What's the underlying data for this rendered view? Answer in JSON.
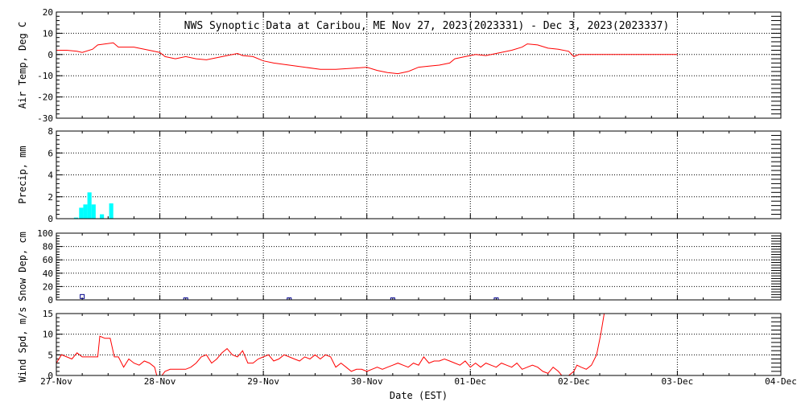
{
  "title": "NWS Synoptic Data at Caribou, ME   Nov 27, 2023(2023331) - Dec  3, 2023(2023337)",
  "xlabel": "Date (EST)",
  "x_ticks": [
    "27-Nov",
    "28-Nov",
    "29-Nov",
    "30-Nov",
    "01-Dec",
    "02-Dec",
    "03-Dec",
    "04-Dec"
  ],
  "colors": {
    "temp": "#ff0000",
    "precip": "#00ffff",
    "snow": "#00008b",
    "wind": "#ff0000",
    "frame": "#000000"
  },
  "chart_data": [
    {
      "type": "line",
      "ylabel": "Air Temp, Deg C",
      "ylim": [
        -30,
        20
      ],
      "yticks": [
        -30,
        -20,
        -10,
        0,
        10,
        20
      ],
      "grid": true,
      "x_unit": "days since 27-Nov 00:00 EST",
      "series": [
        {
          "points": [
            [
              0,
              2
            ],
            [
              0.1,
              2
            ],
            [
              0.2,
              1.5
            ],
            [
              0.25,
              1
            ],
            [
              0.35,
              2.5
            ],
            [
              0.4,
              4.5
            ],
            [
              0.55,
              5.5
            ],
            [
              0.6,
              3.5
            ],
            [
              0.75,
              3.5
            ],
            [
              0.85,
              2.5
            ],
            [
              1.0,
              1
            ],
            [
              1.05,
              -1
            ],
            [
              1.15,
              -2
            ],
            [
              1.25,
              -1
            ],
            [
              1.35,
              -2
            ],
            [
              1.45,
              -2.5
            ],
            [
              1.55,
              -1.5
            ],
            [
              1.65,
              -0.5
            ],
            [
              1.75,
              0.5
            ],
            [
              1.8,
              -0.5
            ],
            [
              1.9,
              -1
            ],
            [
              2.0,
              -3
            ],
            [
              2.1,
              -4
            ],
            [
              2.25,
              -5
            ],
            [
              2.4,
              -6
            ],
            [
              2.55,
              -7
            ],
            [
              2.7,
              -7
            ],
            [
              2.85,
              -6.5
            ],
            [
              3.0,
              -6
            ],
            [
              3.1,
              -7.5
            ],
            [
              3.2,
              -8.5
            ],
            [
              3.3,
              -9
            ],
            [
              3.4,
              -8
            ],
            [
              3.5,
              -6
            ],
            [
              3.6,
              -5.5
            ],
            [
              3.7,
              -5
            ],
            [
              3.8,
              -4
            ],
            [
              3.85,
              -2
            ],
            [
              3.95,
              -1
            ],
            [
              4.0,
              -0.5
            ],
            [
              4.05,
              0
            ],
            [
              4.15,
              -0.5
            ],
            [
              4.25,
              0.5
            ],
            [
              4.4,
              2
            ],
            [
              4.5,
              3.5
            ],
            [
              4.55,
              5
            ],
            [
              4.65,
              4.5
            ],
            [
              4.75,
              3
            ],
            [
              4.85,
              2.5
            ],
            [
              4.95,
              1.5
            ],
            [
              5.0,
              -1
            ],
            [
              5.05,
              0
            ],
            [
              5.1,
              0
            ],
            [
              5.5,
              0
            ],
            [
              6.0,
              0
            ]
          ]
        }
      ]
    },
    {
      "type": "bar",
      "ylabel": "Precip, mm",
      "ylim": [
        0,
        8
      ],
      "yticks": [
        0,
        2,
        4,
        6,
        8
      ],
      "grid": true,
      "x_unit": "days since 27-Nov 00:00 EST",
      "bar_width_days": 0.04,
      "bars": [
        [
          0.19,
          0.1
        ],
        [
          0.24,
          1.0
        ],
        [
          0.28,
          1.3
        ],
        [
          0.32,
          2.4
        ],
        [
          0.36,
          1.3
        ],
        [
          0.44,
          0.4
        ],
        [
          0.53,
          1.4
        ]
      ]
    },
    {
      "type": "scatter",
      "ylabel": "Snow Dep, cm",
      "ylim": [
        0,
        100
      ],
      "yticks": [
        0,
        20,
        40,
        60,
        80,
        100
      ],
      "grid": true,
      "x_unit": "days since 27-Nov 00:00 EST",
      "points": [
        [
          0.25,
          5
        ],
        [
          1.25,
          0
        ],
        [
          2.25,
          0
        ],
        [
          3.25,
          0
        ],
        [
          4.25,
          0
        ]
      ]
    },
    {
      "type": "line",
      "ylabel": "Wind Spd, m/s",
      "ylim": [
        0,
        15
      ],
      "yticks": [
        0,
        5,
        10,
        15
      ],
      "grid": true,
      "x_unit": "days since 27-Nov 00:00 EST",
      "series": [
        {
          "points": [
            [
              0,
              3
            ],
            [
              0.05,
              5
            ],
            [
              0.1,
              4.5
            ],
            [
              0.15,
              4
            ],
            [
              0.2,
              5.5
            ],
            [
              0.25,
              4.5
            ],
            [
              0.3,
              4.5
            ],
            [
              0.35,
              4.5
            ],
            [
              0.4,
              4.5
            ],
            [
              0.42,
              9.5
            ],
            [
              0.47,
              9
            ],
            [
              0.52,
              9
            ],
            [
              0.56,
              4.5
            ],
            [
              0.6,
              4.5
            ],
            [
              0.65,
              2
            ],
            [
              0.7,
              4
            ],
            [
              0.75,
              3
            ],
            [
              0.8,
              2.5
            ],
            [
              0.85,
              3.5
            ],
            [
              0.9,
              3
            ],
            [
              0.95,
              2
            ],
            [
              0.98,
              -1
            ],
            [
              1.02,
              0
            ],
            [
              1.05,
              1
            ],
            [
              1.1,
              1.5
            ],
            [
              1.15,
              1.5
            ],
            [
              1.2,
              1.5
            ],
            [
              1.25,
              1.5
            ],
            [
              1.3,
              2
            ],
            [
              1.35,
              3
            ],
            [
              1.4,
              4.5
            ],
            [
              1.45,
              5
            ],
            [
              1.5,
              3
            ],
            [
              1.55,
              4
            ],
            [
              1.6,
              5.5
            ],
            [
              1.65,
              6.5
            ],
            [
              1.7,
              5
            ],
            [
              1.75,
              4.5
            ],
            [
              1.8,
              6
            ],
            [
              1.85,
              3
            ],
            [
              1.9,
              3
            ],
            [
              1.95,
              4
            ],
            [
              2.0,
              4.5
            ],
            [
              2.05,
              5
            ],
            [
              2.1,
              3.5
            ],
            [
              2.15,
              4
            ],
            [
              2.2,
              5
            ],
            [
              2.25,
              4.5
            ],
            [
              2.3,
              4
            ],
            [
              2.35,
              3.5
            ],
            [
              2.4,
              4.5
            ],
            [
              2.45,
              4
            ],
            [
              2.5,
              5
            ],
            [
              2.55,
              4
            ],
            [
              2.6,
              5
            ],
            [
              2.65,
              4.5
            ],
            [
              2.7,
              2
            ],
            [
              2.75,
              3
            ],
            [
              2.8,
              2
            ],
            [
              2.85,
              1
            ],
            [
              2.9,
              1.5
            ],
            [
              2.95,
              1.5
            ],
            [
              3.0,
              1
            ],
            [
              3.05,
              1.5
            ],
            [
              3.1,
              2
            ],
            [
              3.15,
              1.5
            ],
            [
              3.2,
              2
            ],
            [
              3.25,
              2.5
            ],
            [
              3.3,
              3
            ],
            [
              3.35,
              2.5
            ],
            [
              3.4,
              2
            ],
            [
              3.45,
              3
            ],
            [
              3.5,
              2.5
            ],
            [
              3.55,
              4.5
            ],
            [
              3.6,
              3
            ],
            [
              3.65,
              3.5
            ],
            [
              3.7,
              3.5
            ],
            [
              3.75,
              4
            ],
            [
              3.8,
              3.5
            ],
            [
              3.85,
              3
            ],
            [
              3.9,
              2.5
            ],
            [
              3.95,
              3.5
            ],
            [
              4.0,
              2
            ],
            [
              4.05,
              3
            ],
            [
              4.1,
              2
            ],
            [
              4.15,
              3
            ],
            [
              4.2,
              2.5
            ],
            [
              4.25,
              2
            ],
            [
              4.3,
              3
            ],
            [
              4.35,
              2.5
            ],
            [
              4.4,
              2
            ],
            [
              4.45,
              3
            ],
            [
              4.5,
              1.5
            ],
            [
              4.55,
              2
            ],
            [
              4.6,
              2.5
            ],
            [
              4.65,
              2
            ],
            [
              4.7,
              1
            ],
            [
              4.75,
              0.5
            ],
            [
              4.8,
              2
            ],
            [
              4.85,
              1
            ],
            [
              4.9,
              -0.5
            ],
            [
              4.95,
              0
            ],
            [
              5.0,
              1
            ],
            [
              5.03,
              2.5
            ],
            [
              5.07,
              2
            ],
            [
              5.12,
              1.5
            ],
            [
              5.17,
              2.5
            ],
            [
              5.22,
              5
            ],
            [
              5.26,
              10
            ],
            [
              5.3,
              16
            ]
          ]
        }
      ]
    }
  ]
}
